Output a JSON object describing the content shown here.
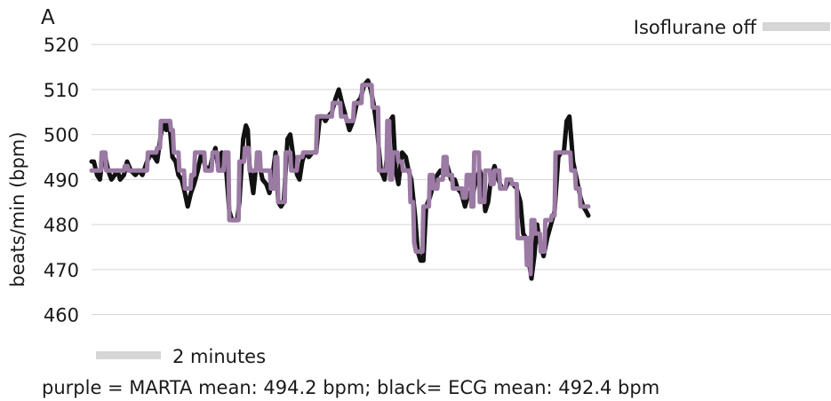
{
  "chart_data": {
    "type": "line",
    "panel_label": "A",
    "ylabel": "beats/min (bpm)",
    "xlabel": "",
    "ylim": [
      455,
      522
    ],
    "yticks": [
      460,
      470,
      480,
      490,
      500,
      510,
      520
    ],
    "grid": "horizontal",
    "x_unit": "minutes",
    "xlim": [
      0,
      16.0
    ],
    "scale_bar": {
      "label": "2 minutes",
      "length_minutes": 2
    },
    "annotation": {
      "label": "Isoflurane off",
      "marker": "gray-bar"
    },
    "caption": "purple = MARTA mean: 494.2 bpm; black= ECG mean: 492.4 bpm",
    "series": [
      {
        "name": "ECG",
        "color": "#111111",
        "points": [
          [
            0.0,
            494
          ],
          [
            0.05,
            494
          ],
          [
            0.12,
            491
          ],
          [
            0.18,
            490
          ],
          [
            0.24,
            495
          ],
          [
            0.3,
            495
          ],
          [
            0.36,
            492
          ],
          [
            0.43,
            490
          ],
          [
            0.5,
            491
          ],
          [
            0.56,
            492
          ],
          [
            0.62,
            490
          ],
          [
            0.7,
            491
          ],
          [
            0.77,
            494
          ],
          [
            0.85,
            492
          ],
          [
            0.95,
            491
          ],
          [
            1.02,
            492
          ],
          [
            1.1,
            491
          ],
          [
            1.2,
            494
          ],
          [
            1.3,
            496
          ],
          [
            1.42,
            494
          ],
          [
            1.5,
            500
          ],
          [
            1.56,
            503
          ],
          [
            1.62,
            501
          ],
          [
            1.68,
            503
          ],
          [
            1.75,
            495
          ],
          [
            1.82,
            494
          ],
          [
            1.88,
            491
          ],
          [
            1.95,
            490
          ],
          [
            2.02,
            487
          ],
          [
            2.08,
            484
          ],
          [
            2.15,
            487
          ],
          [
            2.22,
            489
          ],
          [
            2.3,
            492
          ],
          [
            2.38,
            496
          ],
          [
            2.46,
            493
          ],
          [
            2.55,
            492
          ],
          [
            2.62,
            495
          ],
          [
            2.68,
            497
          ],
          [
            2.75,
            492
          ],
          [
            2.82,
            496
          ],
          [
            2.9,
            494
          ],
          [
            2.98,
            483
          ],
          [
            3.04,
            481
          ],
          [
            3.1,
            481
          ],
          [
            3.15,
            481
          ],
          [
            3.2,
            485
          ],
          [
            3.28,
            499
          ],
          [
            3.34,
            502
          ],
          [
            3.38,
            501
          ],
          [
            3.42,
            493
          ],
          [
            3.5,
            487
          ],
          [
            3.55,
            492
          ],
          [
            3.62,
            494
          ],
          [
            3.7,
            490
          ],
          [
            3.78,
            489
          ],
          [
            3.85,
            487
          ],
          [
            3.92,
            491
          ],
          [
            3.98,
            496
          ],
          [
            4.04,
            485
          ],
          [
            4.1,
            484
          ],
          [
            4.16,
            485
          ],
          [
            4.24,
            499
          ],
          [
            4.3,
            500
          ],
          [
            4.38,
            494
          ],
          [
            4.45,
            491
          ],
          [
            4.5,
            490
          ],
          [
            4.56,
            494
          ],
          [
            4.62,
            496
          ],
          [
            4.7,
            495
          ],
          [
            4.78,
            496
          ],
          [
            4.86,
            496
          ],
          [
            4.94,
            504
          ],
          [
            5.0,
            504
          ],
          [
            5.06,
            503
          ],
          [
            5.12,
            504
          ],
          [
            5.2,
            505
          ],
          [
            5.28,
            508
          ],
          [
            5.35,
            510
          ],
          [
            5.42,
            507
          ],
          [
            5.5,
            504
          ],
          [
            5.58,
            501
          ],
          [
            5.66,
            503
          ],
          [
            5.74,
            507
          ],
          [
            5.82,
            508
          ],
          [
            5.9,
            511
          ],
          [
            5.98,
            512
          ],
          [
            6.04,
            510
          ],
          [
            6.1,
            507
          ],
          [
            6.18,
            501
          ],
          [
            6.26,
            492
          ],
          [
            6.34,
            490
          ],
          [
            6.4,
            496
          ],
          [
            6.46,
            503
          ],
          [
            6.52,
            504
          ],
          [
            6.58,
            492
          ],
          [
            6.64,
            489
          ],
          [
            6.72,
            496
          ],
          [
            6.8,
            495
          ],
          [
            6.86,
            492
          ],
          [
            6.92,
            490
          ],
          [
            7.0,
            482
          ],
          [
            7.06,
            474
          ],
          [
            7.12,
            472
          ],
          [
            7.18,
            472
          ],
          [
            7.24,
            484
          ],
          [
            7.32,
            486
          ],
          [
            7.4,
            489
          ],
          [
            7.48,
            491
          ],
          [
            7.55,
            492
          ],
          [
            7.62,
            491
          ],
          [
            7.7,
            493
          ],
          [
            7.78,
            490
          ],
          [
            7.86,
            490
          ],
          [
            7.92,
            488
          ],
          [
            8.0,
            487
          ],
          [
            8.08,
            484
          ],
          [
            8.16,
            487
          ],
          [
            8.24,
            486
          ],
          [
            8.32,
            490
          ],
          [
            8.4,
            492
          ],
          [
            8.46,
            490
          ],
          [
            8.52,
            483
          ],
          [
            8.58,
            485
          ],
          [
            8.64,
            490
          ],
          [
            8.72,
            493
          ],
          [
            8.8,
            490
          ],
          [
            8.88,
            488
          ],
          [
            8.96,
            488
          ],
          [
            9.04,
            490
          ],
          [
            9.12,
            489
          ],
          [
            9.2,
            488
          ],
          [
            9.28,
            485
          ],
          [
            9.34,
            478
          ],
          [
            9.4,
            477
          ],
          [
            9.46,
            472
          ],
          [
            9.52,
            468
          ],
          [
            9.58,
            473
          ],
          [
            9.64,
            480
          ],
          [
            9.7,
            476
          ],
          [
            9.78,
            473
          ],
          [
            9.86,
            477
          ],
          [
            9.94,
            480
          ],
          [
            10.02,
            483
          ],
          [
            10.1,
            495
          ],
          [
            10.16,
            496
          ],
          [
            10.22,
            496
          ],
          [
            10.28,
            503
          ],
          [
            10.34,
            504
          ],
          [
            10.42,
            494
          ],
          [
            10.5,
            490
          ],
          [
            10.58,
            486
          ],
          [
            10.64,
            484
          ],
          [
            10.7,
            483
          ],
          [
            10.75,
            482
          ]
        ]
      },
      {
        "name": "MARTA",
        "color": "#9b7aa3",
        "points": [
          [
            0.0,
            492
          ],
          [
            0.2,
            492
          ],
          [
            0.22,
            496
          ],
          [
            0.3,
            496
          ],
          [
            0.32,
            492
          ],
          [
            0.7,
            492
          ],
          [
            0.72,
            493
          ],
          [
            0.78,
            493
          ],
          [
            0.8,
            492
          ],
          [
            1.2,
            492
          ],
          [
            1.22,
            496
          ],
          [
            1.4,
            496
          ],
          [
            1.42,
            497
          ],
          [
            1.48,
            497
          ],
          [
            1.5,
            503
          ],
          [
            1.7,
            503
          ],
          [
            1.72,
            501
          ],
          [
            1.76,
            501
          ],
          [
            1.78,
            496
          ],
          [
            1.88,
            496
          ],
          [
            1.9,
            492
          ],
          [
            2.0,
            492
          ],
          [
            2.02,
            488
          ],
          [
            2.14,
            488
          ],
          [
            2.16,
            491
          ],
          [
            2.22,
            491
          ],
          [
            2.24,
            496
          ],
          [
            2.44,
            496
          ],
          [
            2.46,
            492
          ],
          [
            2.6,
            492
          ],
          [
            2.62,
            496
          ],
          [
            2.72,
            496
          ],
          [
            2.74,
            492
          ],
          [
            2.86,
            492
          ],
          [
            2.88,
            496
          ],
          [
            2.96,
            496
          ],
          [
            2.98,
            481
          ],
          [
            3.18,
            481
          ],
          [
            3.2,
            494
          ],
          [
            3.3,
            494
          ],
          [
            3.32,
            497
          ],
          [
            3.4,
            497
          ],
          [
            3.42,
            492
          ],
          [
            3.56,
            492
          ],
          [
            3.58,
            496
          ],
          [
            3.64,
            496
          ],
          [
            3.66,
            492
          ],
          [
            3.86,
            492
          ],
          [
            3.88,
            488
          ],
          [
            3.96,
            488
          ],
          [
            3.98,
            495
          ],
          [
            4.02,
            495
          ],
          [
            4.04,
            485
          ],
          [
            4.18,
            485
          ],
          [
            4.2,
            496
          ],
          [
            4.3,
            496
          ],
          [
            4.32,
            492
          ],
          [
            4.44,
            492
          ],
          [
            4.46,
            495
          ],
          [
            4.56,
            495
          ],
          [
            4.58,
            496
          ],
          [
            4.86,
            496
          ],
          [
            4.88,
            504
          ],
          [
            5.08,
            504
          ],
          [
            5.1,
            504
          ],
          [
            5.2,
            504
          ],
          [
            5.22,
            507
          ],
          [
            5.38,
            507
          ],
          [
            5.4,
            504
          ],
          [
            5.5,
            504
          ],
          [
            5.52,
            503
          ],
          [
            5.66,
            503
          ],
          [
            5.68,
            507
          ],
          [
            5.84,
            507
          ],
          [
            5.86,
            511
          ],
          [
            5.98,
            511
          ],
          [
            6.0,
            511
          ],
          [
            6.06,
            511
          ],
          [
            6.08,
            506
          ],
          [
            6.2,
            506
          ],
          [
            6.22,
            492
          ],
          [
            6.38,
            492
          ],
          [
            6.4,
            503
          ],
          [
            6.44,
            503
          ],
          [
            6.46,
            490
          ],
          [
            6.5,
            490
          ],
          [
            6.52,
            496
          ],
          [
            6.62,
            496
          ],
          [
            6.64,
            494
          ],
          [
            6.72,
            494
          ],
          [
            6.74,
            492
          ],
          [
            6.88,
            492
          ],
          [
            6.9,
            485
          ],
          [
            6.96,
            485
          ],
          [
            6.98,
            476
          ],
          [
            7.02,
            474
          ],
          [
            7.16,
            474
          ],
          [
            7.18,
            484
          ],
          [
            7.3,
            484
          ],
          [
            7.32,
            491
          ],
          [
            7.38,
            491
          ],
          [
            7.4,
            488
          ],
          [
            7.48,
            488
          ],
          [
            7.5,
            490
          ],
          [
            7.6,
            490
          ],
          [
            7.62,
            495
          ],
          [
            7.68,
            495
          ],
          [
            7.7,
            491
          ],
          [
            7.8,
            491
          ],
          [
            7.82,
            488
          ],
          [
            8.02,
            488
          ],
          [
            8.04,
            486
          ],
          [
            8.1,
            486
          ],
          [
            8.12,
            491
          ],
          [
            8.2,
            491
          ],
          [
            8.22,
            484
          ],
          [
            8.26,
            484
          ],
          [
            8.28,
            496
          ],
          [
            8.38,
            496
          ],
          [
            8.4,
            485
          ],
          [
            8.5,
            485
          ],
          [
            8.52,
            492
          ],
          [
            8.62,
            492
          ],
          [
            8.64,
            489
          ],
          [
            8.7,
            489
          ],
          [
            8.72,
            492
          ],
          [
            8.82,
            492
          ],
          [
            8.84,
            488
          ],
          [
            8.96,
            488
          ],
          [
            8.98,
            490
          ],
          [
            9.08,
            490
          ],
          [
            9.1,
            489
          ],
          [
            9.2,
            489
          ],
          [
            9.22,
            477
          ],
          [
            9.4,
            477
          ],
          [
            9.42,
            471
          ],
          [
            9.44,
            477
          ],
          [
            9.48,
            477
          ],
          [
            9.5,
            469
          ],
          [
            9.52,
            481
          ],
          [
            9.58,
            481
          ],
          [
            9.6,
            478
          ],
          [
            9.7,
            478
          ],
          [
            9.72,
            474
          ],
          [
            9.8,
            474
          ],
          [
            9.82,
            481
          ],
          [
            9.94,
            481
          ],
          [
            9.96,
            482
          ],
          [
            10.02,
            482
          ],
          [
            10.04,
            496
          ],
          [
            10.24,
            496
          ],
          [
            10.26,
            496
          ],
          [
            10.36,
            496
          ],
          [
            10.38,
            492
          ],
          [
            10.46,
            492
          ],
          [
            10.48,
            488
          ],
          [
            10.56,
            488
          ],
          [
            10.58,
            484
          ],
          [
            10.75,
            484
          ]
        ]
      }
    ]
  }
}
